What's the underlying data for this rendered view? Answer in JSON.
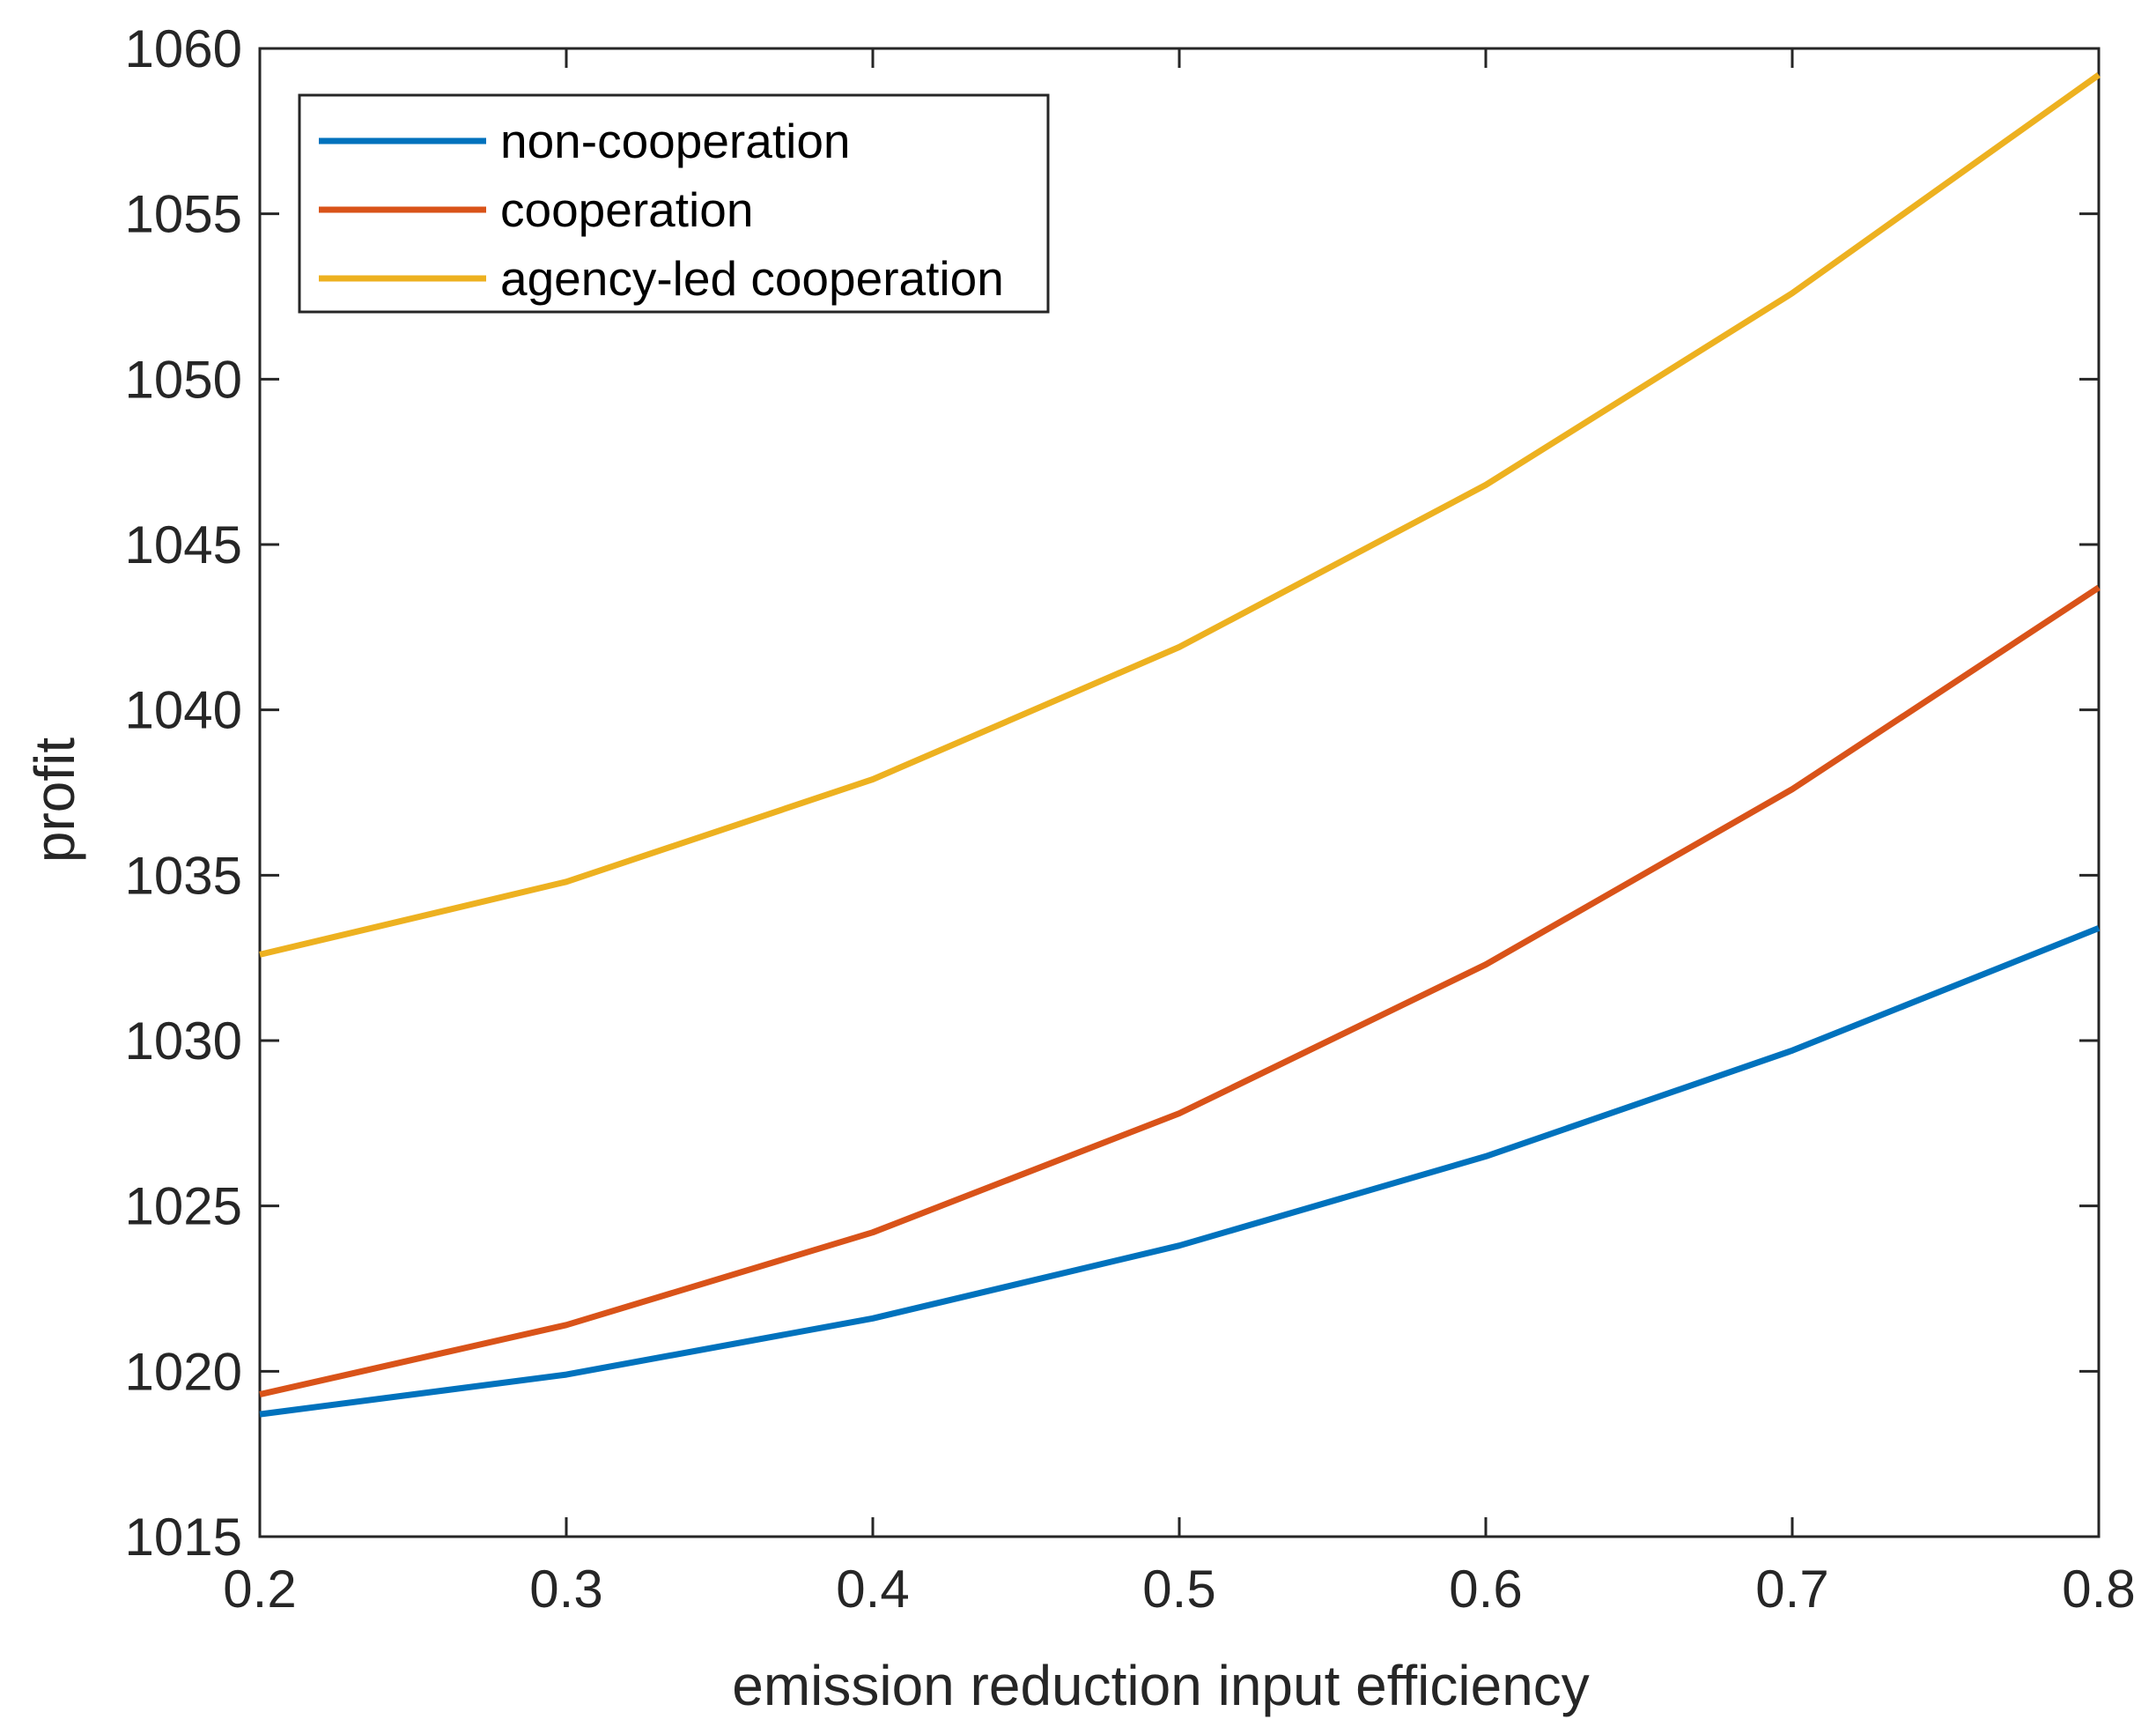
{
  "chart_data": {
    "type": "line",
    "title": "",
    "xlabel": "emission reduction input efficiency",
    "ylabel": "profit",
    "xlim": [
      0.2,
      0.8
    ],
    "ylim": [
      1015,
      1060
    ],
    "x": [
      0.2,
      0.3,
      0.4,
      0.5,
      0.6,
      0.7,
      0.8
    ],
    "x_ticks": [
      "0.2",
      "0.3",
      "0.4",
      "0.5",
      "0.6",
      "0.7",
      "0.8"
    ],
    "y_ticks": [
      "1015",
      "1020",
      "1025",
      "1030",
      "1035",
      "1040",
      "1045",
      "1050",
      "1055",
      "1060"
    ],
    "grid": false,
    "legend_position": "top-left",
    "series": [
      {
        "name": "non-cooperation",
        "color": "#0072BD",
        "values": [
          1018.7,
          1019.9,
          1021.6,
          1023.8,
          1026.5,
          1029.7,
          1033.4
        ]
      },
      {
        "name": "cooperation",
        "color": "#D95319",
        "values": [
          1019.3,
          1021.4,
          1024.2,
          1027.8,
          1032.3,
          1037.6,
          1043.7
        ]
      },
      {
        "name": "agency-led cooperation",
        "color": "#EDB120",
        "values": [
          1032.6,
          1034.8,
          1037.9,
          1041.9,
          1046.8,
          1052.6,
          1059.2
        ]
      }
    ]
  }
}
